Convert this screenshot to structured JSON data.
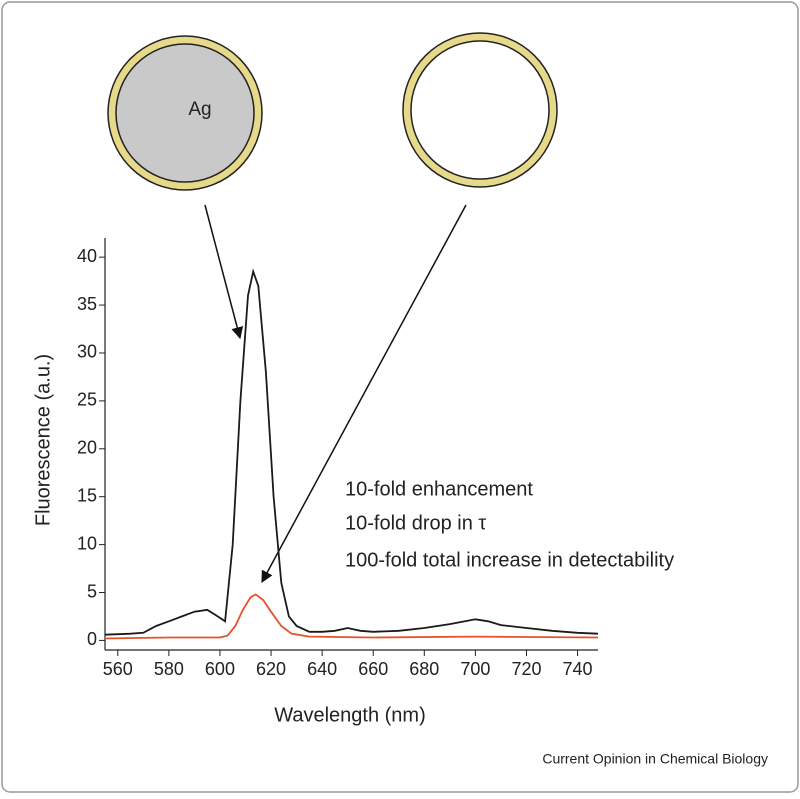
{
  "chart_data": {
    "type": "line",
    "xlabel": "Wavelength (nm)",
    "ylabel": "Fluorescence (a.u.)",
    "annotations": [
      "Ag",
      "10-fold enhancement",
      "10-fold drop in τ",
      "100-fold total increase in detectability"
    ],
    "source": "Current Opinion in Chemical Biology",
    "xlim": [
      555,
      748
    ],
    "ylim": [
      -1,
      42
    ],
    "xticks": [
      560,
      580,
      600,
      620,
      640,
      660,
      680,
      700,
      720,
      740
    ],
    "yticks": [
      0,
      5,
      10,
      15,
      20,
      25,
      30,
      35,
      40
    ],
    "series": [
      {
        "color": "#1a1a1a",
        "x": [
          555,
          565,
          570,
          575,
          580,
          585,
          590,
          595,
          598,
          602,
          605,
          608,
          611,
          613,
          615,
          618,
          621,
          624,
          627,
          630,
          635,
          640,
          645,
          650,
          655,
          660,
          670,
          680,
          690,
          700,
          705,
          710,
          720,
          730,
          740,
          748
        ],
        "values": [
          0.6,
          0.7,
          0.8,
          1.5,
          2.0,
          2.5,
          3.0,
          3.2,
          2.7,
          2.0,
          10,
          25,
          36,
          38.5,
          37,
          28,
          15,
          6,
          2.5,
          1.5,
          0.9,
          0.9,
          1.0,
          1.3,
          1.0,
          0.9,
          1.0,
          1.3,
          1.7,
          2.2,
          2.0,
          1.6,
          1.3,
          1.0,
          0.8,
          0.7
        ]
      },
      {
        "color": "#e8502a",
        "x": [
          555,
          580,
          600,
          603,
          606,
          609,
          612,
          614,
          617,
          620,
          624,
          628,
          635,
          660,
          700,
          748
        ],
        "values": [
          0.2,
          0.3,
          0.3,
          0.5,
          1.5,
          3.2,
          4.5,
          4.8,
          4.2,
          3.0,
          1.5,
          0.7,
          0.4,
          0.3,
          0.4,
          0.3
        ]
      }
    ]
  }
}
